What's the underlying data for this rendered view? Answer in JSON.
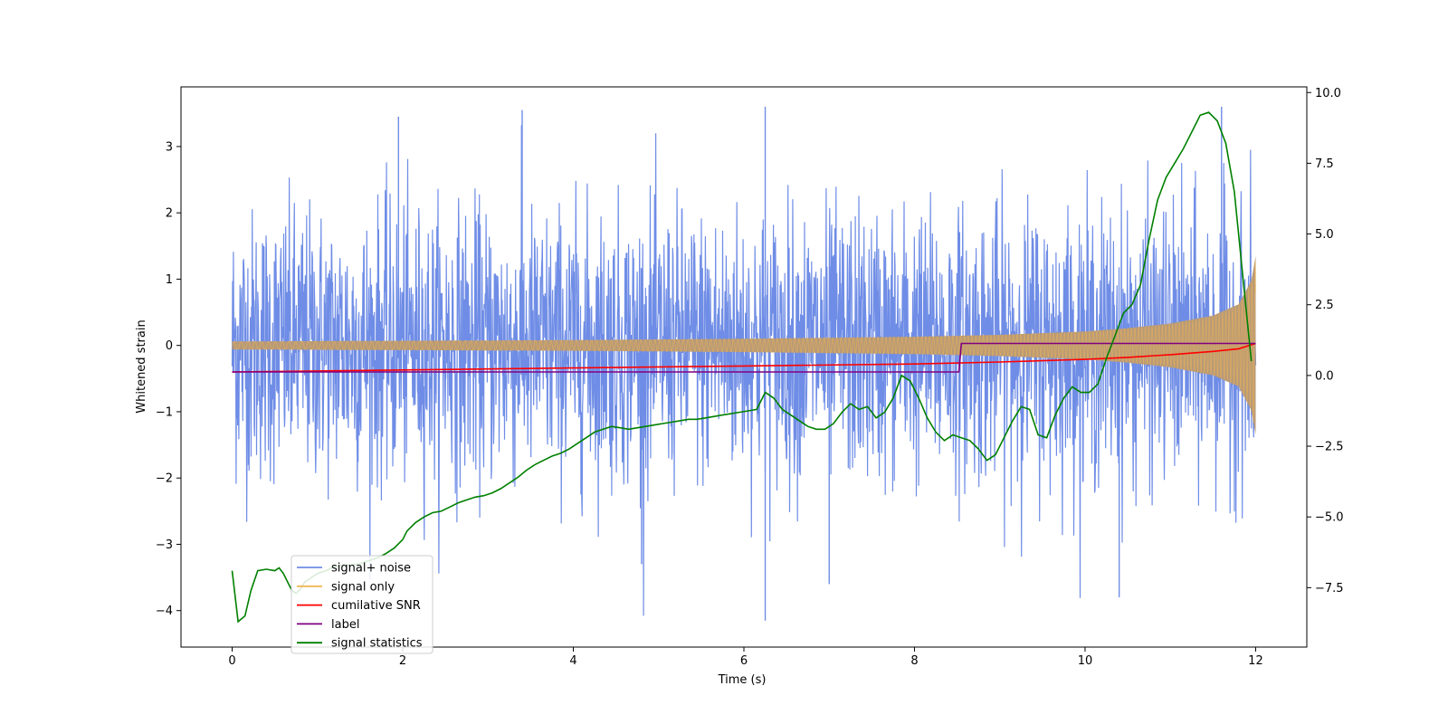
{
  "chart_data": {
    "type": "line",
    "xlabel": "Time (s)",
    "ylabel": "Whitened strain",
    "xlim": [
      -0.6,
      12.6
    ],
    "ylim": [
      -4.55,
      3.9
    ],
    "y2lim": [
      -9.6,
      10.2
    ],
    "x_ticks": [
      0,
      2,
      4,
      6,
      8,
      10,
      12
    ],
    "y_ticks": [
      -4,
      -3,
      -2,
      -1,
      0,
      1,
      2,
      3
    ],
    "y2_ticks": [
      -7.5,
      -5.0,
      -2.5,
      0.0,
      2.5,
      5.0,
      7.5,
      10.0
    ],
    "y2_tick_labels": [
      "−7.5",
      "−5.0",
      "−2.5",
      "0.0",
      "2.5",
      "5.0",
      "7.5",
      "10.0"
    ],
    "legend_position": "lower-left",
    "colors": {
      "signal_noise": "#6f8de6",
      "signal_only": "#f0b650",
      "signal_only_fill": "#b89a78",
      "snr": "#ff0000",
      "label": "#800080",
      "statistics": "#008000"
    },
    "series": [
      {
        "name": "signal+ noise",
        "axis": "left",
        "x_range": [
          0,
          12
        ],
        "approx_envelope": {
          "min": -4.15,
          "max": 3.6,
          "typical_abs": 1.3
        },
        "notable_peaks": [
          [
            1.95,
            3.45
          ],
          [
            3.4,
            3.55
          ],
          [
            6.25,
            3.6
          ],
          [
            11.6,
            3.6
          ],
          [
            6.25,
            -4.15
          ],
          [
            10.4,
            -3.8
          ],
          [
            4.8,
            -3.3
          ],
          [
            7.0,
            -3.6
          ]
        ]
      },
      {
        "name": "signal only",
        "axis": "left",
        "x_range": [
          0,
          12
        ],
        "envelope_amplitude": {
          "x": [
            0,
            2,
            4,
            6,
            8,
            9,
            10,
            10.5,
            11,
            11.5,
            11.8,
            11.95,
            12.0
          ],
          "amp": [
            0.06,
            0.07,
            0.08,
            0.1,
            0.13,
            0.16,
            0.21,
            0.26,
            0.33,
            0.45,
            0.62,
            0.98,
            1.35
          ]
        }
      },
      {
        "name": "cumilative SNR",
        "axis": "left",
        "x": [
          0,
          2,
          4,
          6,
          8,
          9,
          10,
          10.5,
          11,
          11.5,
          11.8,
          12
        ],
        "y": [
          -0.4,
          -0.37,
          -0.34,
          -0.31,
          -0.28,
          -0.25,
          -0.21,
          -0.18,
          -0.14,
          -0.09,
          -0.05,
          0.03
        ]
      },
      {
        "name": "label",
        "axis": "left",
        "x": [
          0,
          8.52,
          8.55,
          12
        ],
        "y": [
          -0.4,
          -0.4,
          0.03,
          0.03
        ]
      },
      {
        "name": "signal statistics",
        "axis": "right",
        "x": [
          0,
          0.07,
          0.15,
          0.22,
          0.3,
          0.4,
          0.5,
          0.55,
          0.6,
          0.7,
          0.75,
          0.8,
          0.85,
          0.9,
          1.0,
          1.1,
          1.2,
          1.3,
          1.4,
          1.5,
          1.6,
          1.7,
          1.8,
          1.9,
          2.0,
          2.05,
          2.15,
          2.25,
          2.35,
          2.45,
          2.55,
          2.65,
          2.75,
          2.85,
          2.95,
          3.05,
          3.15,
          3.25,
          3.35,
          3.45,
          3.55,
          3.65,
          3.75,
          3.85,
          3.95,
          4.05,
          4.15,
          4.25,
          4.35,
          4.45,
          4.55,
          4.65,
          4.75,
          4.85,
          4.95,
          5.05,
          5.15,
          5.25,
          5.35,
          5.45,
          5.55,
          5.65,
          5.75,
          5.85,
          5.95,
          6.05,
          6.15,
          6.25,
          6.35,
          6.45,
          6.55,
          6.65,
          6.75,
          6.85,
          6.95,
          7.05,
          7.15,
          7.25,
          7.35,
          7.45,
          7.55,
          7.65,
          7.75,
          7.85,
          7.95,
          8.05,
          8.15,
          8.25,
          8.35,
          8.45,
          8.55,
          8.65,
          8.75,
          8.85,
          8.95,
          9.05,
          9.15,
          9.25,
          9.35,
          9.45,
          9.55,
          9.65,
          9.75,
          9.85,
          9.95,
          10.05,
          10.15,
          10.25,
          10.35,
          10.45,
          10.55,
          10.65,
          10.75,
          10.85,
          10.95,
          11.05,
          11.15,
          11.25,
          11.35,
          11.45,
          11.55,
          11.65,
          11.75,
          11.85,
          11.95
        ],
        "y": [
          -6.9,
          -8.7,
          -8.5,
          -7.6,
          -6.9,
          -6.85,
          -6.9,
          -6.8,
          -7.0,
          -7.6,
          -7.7,
          -7.55,
          -7.3,
          -7.2,
          -7.0,
          -6.9,
          -6.75,
          -6.7,
          -6.7,
          -6.65,
          -6.55,
          -6.45,
          -6.3,
          -6.1,
          -5.8,
          -5.5,
          -5.2,
          -5.0,
          -4.85,
          -4.8,
          -4.65,
          -4.5,
          -4.4,
          -4.3,
          -4.25,
          -4.15,
          -4.0,
          -3.8,
          -3.6,
          -3.35,
          -3.15,
          -3.0,
          -2.85,
          -2.75,
          -2.6,
          -2.4,
          -2.2,
          -2.0,
          -1.9,
          -1.8,
          -1.85,
          -1.9,
          -1.85,
          -1.8,
          -1.75,
          -1.7,
          -1.65,
          -1.6,
          -1.55,
          -1.55,
          -1.5,
          -1.45,
          -1.4,
          -1.35,
          -1.3,
          -1.25,
          -1.2,
          -0.6,
          -0.8,
          -1.2,
          -1.4,
          -1.6,
          -1.8,
          -1.9,
          -1.9,
          -1.7,
          -1.3,
          -1.0,
          -1.2,
          -1.1,
          -1.5,
          -1.3,
          -0.8,
          0.0,
          -0.2,
          -0.8,
          -1.5,
          -2.0,
          -2.3,
          -2.1,
          -2.2,
          -2.3,
          -2.6,
          -3.0,
          -2.8,
          -2.2,
          -1.6,
          -1.1,
          -1.2,
          -2.1,
          -2.2,
          -1.4,
          -0.8,
          -0.4,
          -0.6,
          -0.6,
          -0.3,
          0.6,
          1.4,
          2.2,
          2.5,
          3.2,
          4.8,
          6.2,
          7.0,
          7.5,
          8.0,
          8.6,
          9.2,
          9.3,
          9.0,
          8.2,
          6.5,
          3.5,
          0.5
        ]
      }
    ]
  }
}
